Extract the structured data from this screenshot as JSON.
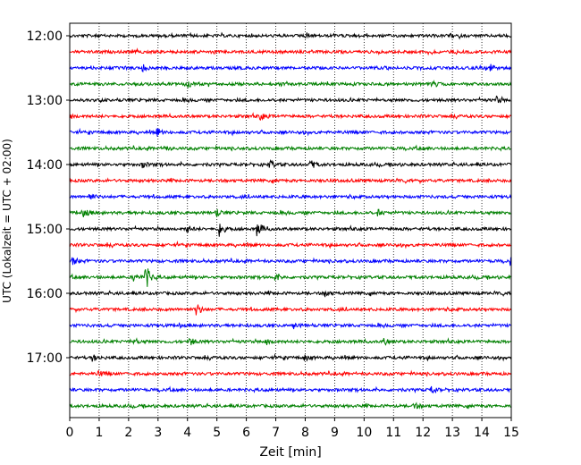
{
  "chart_data": {
    "type": "line",
    "chart_kind": "helicorder",
    "xlabel": "Zeit  [min]",
    "ylabel": "UTC (Lokalzeit = UTC + 02:00)",
    "x_ticks": [
      0,
      1,
      2,
      3,
      4,
      5,
      6,
      7,
      8,
      9,
      10,
      11,
      12,
      13,
      14,
      15
    ],
    "xlim": [
      0,
      15
    ],
    "y_ticks": [
      {
        "label": "12:00",
        "row": 0
      },
      {
        "label": "13:00",
        "row": 4
      },
      {
        "label": "14:00",
        "row": 8
      },
      {
        "label": "15:00",
        "row": 12
      },
      {
        "label": "16:00",
        "row": 16
      },
      {
        "label": "17:00",
        "row": 20
      }
    ],
    "row_minutes": 15,
    "rows": [
      {
        "start": "12:00",
        "color": "#000000",
        "events": [
          {
            "t": 8.0,
            "a": 0.35
          }
        ]
      },
      {
        "start": "12:15",
        "color": "#ff0000",
        "events": []
      },
      {
        "start": "12:30",
        "color": "#0000ff",
        "events": [
          {
            "t": 2.5,
            "a": 0.3
          },
          {
            "t": 14.3,
            "a": 0.3
          }
        ]
      },
      {
        "start": "12:45",
        "color": "#008000",
        "events": [
          {
            "t": 4.0,
            "a": 0.3
          },
          {
            "t": 12.3,
            "a": 0.3
          }
        ]
      },
      {
        "start": "13:00",
        "color": "#000000",
        "events": [
          {
            "t": 14.5,
            "a": 0.35
          }
        ]
      },
      {
        "start": "13:15",
        "color": "#ff0000",
        "events": [
          {
            "t": 0.0,
            "a": 0.35
          },
          {
            "t": 6.5,
            "a": 0.35
          }
        ]
      },
      {
        "start": "13:30",
        "color": "#0000ff",
        "events": [
          {
            "t": 3.0,
            "a": 0.35
          }
        ]
      },
      {
        "start": "13:45",
        "color": "#008000",
        "events": [
          {
            "t": 3.2,
            "a": 0.3
          }
        ]
      },
      {
        "start": "14:00",
        "color": "#000000",
        "events": [
          {
            "t": 2.5,
            "a": 0.3
          },
          {
            "t": 6.8,
            "a": 0.45
          },
          {
            "t": 8.2,
            "a": 0.45
          }
        ]
      },
      {
        "start": "14:15",
        "color": "#ff0000",
        "events": []
      },
      {
        "start": "14:30",
        "color": "#0000ff",
        "events": [
          {
            "t": 0.7,
            "a": 0.35
          }
        ]
      },
      {
        "start": "14:45",
        "color": "#008000",
        "events": [
          {
            "t": 0.5,
            "a": 0.35
          },
          {
            "t": 5.0,
            "a": 0.3
          },
          {
            "t": 10.5,
            "a": 0.25
          }
        ]
      },
      {
        "start": "15:00",
        "color": "#000000",
        "events": [
          {
            "t": 4.0,
            "a": 0.35
          },
          {
            "t": 5.1,
            "a": 0.8
          },
          {
            "t": 6.4,
            "a": 0.75
          }
        ]
      },
      {
        "start": "15:15",
        "color": "#ff0000",
        "events": []
      },
      {
        "start": "15:30",
        "color": "#0000ff",
        "events": [
          {
            "t": 0.1,
            "a": 0.5
          },
          {
            "t": 15.0,
            "a": 0.4
          }
        ]
      },
      {
        "start": "15:45",
        "color": "#008000",
        "events": [
          {
            "t": 2.2,
            "a": 0.35
          },
          {
            "t": 2.6,
            "a": 1.3
          },
          {
            "t": 7.0,
            "a": 0.35
          }
        ]
      },
      {
        "start": "16:00",
        "color": "#000000",
        "events": [
          {
            "t": 8.7,
            "a": 0.35
          }
        ]
      },
      {
        "start": "16:15",
        "color": "#ff0000",
        "events": [
          {
            "t": 4.3,
            "a": 0.8
          }
        ]
      },
      {
        "start": "16:30",
        "color": "#0000ff",
        "events": [
          {
            "t": 7.6,
            "a": 0.3
          }
        ]
      },
      {
        "start": "16:45",
        "color": "#008000",
        "events": [
          {
            "t": 2.2,
            "a": 0.3
          },
          {
            "t": 4.1,
            "a": 0.4
          },
          {
            "t": 6.7,
            "a": 0.35
          },
          {
            "t": 10.7,
            "a": 0.3
          }
        ]
      },
      {
        "start": "17:00",
        "color": "#000000",
        "events": [
          {
            "t": 0.8,
            "a": 0.3
          },
          {
            "t": 8.0,
            "a": 0.25
          }
        ]
      },
      {
        "start": "17:15",
        "color": "#ff0000",
        "events": [
          {
            "t": 1.0,
            "a": 0.3
          }
        ]
      },
      {
        "start": "17:30",
        "color": "#0000ff",
        "events": [
          {
            "t": 12.3,
            "a": 0.35
          }
        ]
      },
      {
        "start": "17:45",
        "color": "#008000",
        "events": [
          {
            "t": 11.7,
            "a": 0.3
          }
        ]
      }
    ],
    "grid": "vertical-dotted",
    "legend": "none"
  }
}
